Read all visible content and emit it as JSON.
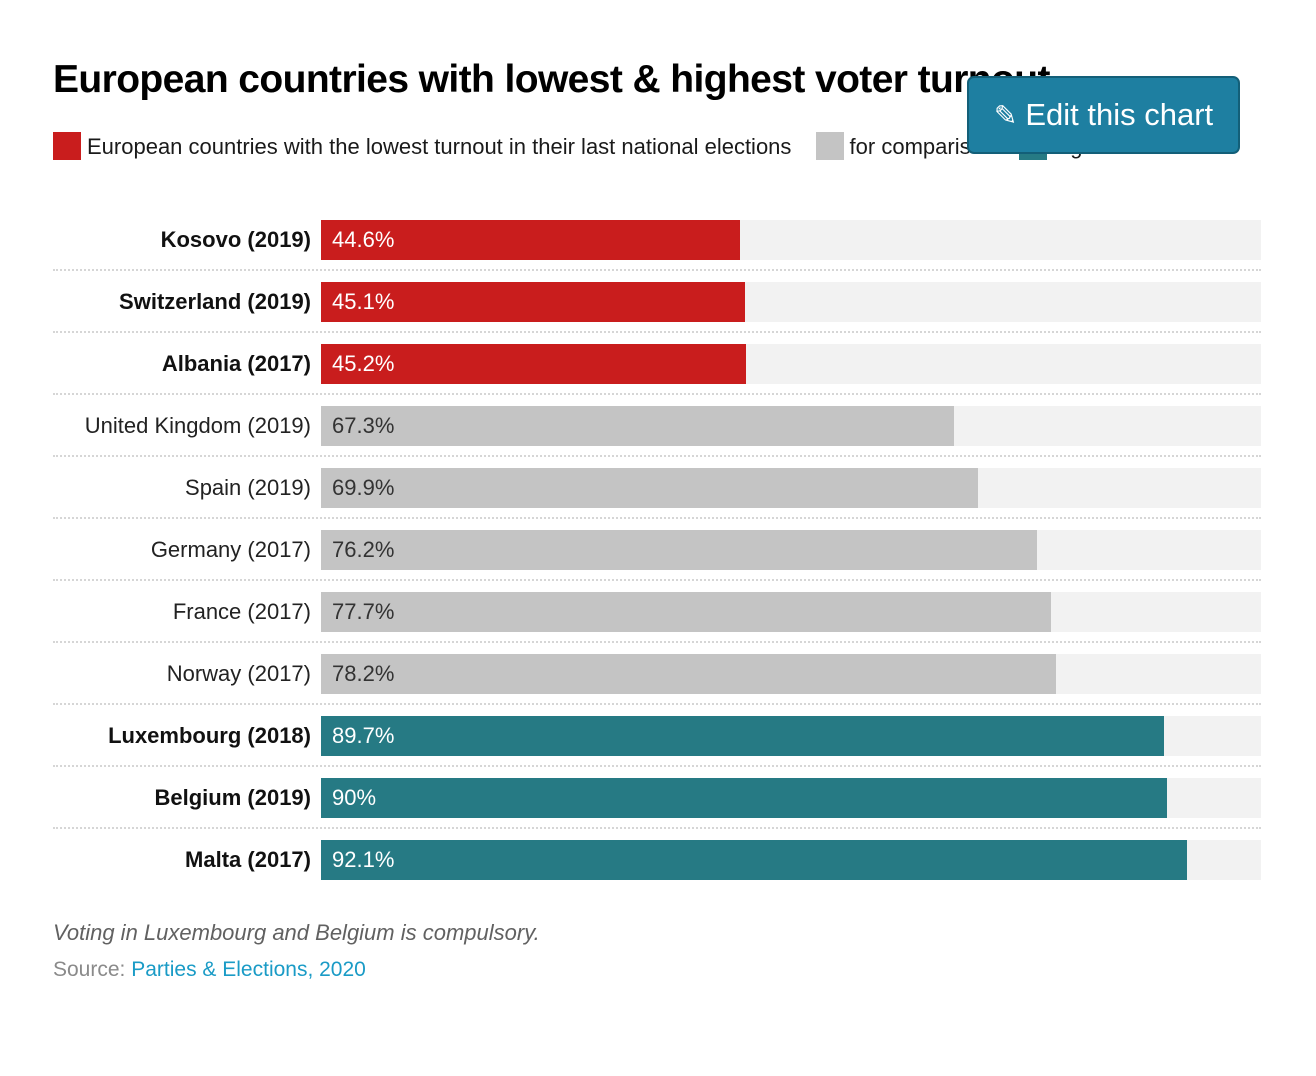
{
  "edit_button": {
    "label": "Edit this chart",
    "icon": "pencil-icon",
    "glyph": "✎"
  },
  "colors": {
    "low": "#c91d1d",
    "compare": "#c4c4c4",
    "high": "#267a84",
    "track": "#f2f2f2",
    "link": "#1a9bc6"
  },
  "chart_data": {
    "type": "bar",
    "orientation": "horizontal",
    "title": "European countries with lowest & highest voter turnout",
    "legend": [
      {
        "key": "low",
        "label": "European countries with the lowest turnout in their last national elections"
      },
      {
        "key": "compare",
        "label": "for comparison"
      },
      {
        "key": "high",
        "label": "highest turnout"
      }
    ],
    "legend_position": "top",
    "xlim": [
      0,
      100
    ],
    "categories": [
      "Kosovo (2019)",
      "Switzerland (2019)",
      "Albania (2017)",
      "United Kingdom (2019)",
      "Spain (2019)",
      "Germany (2017)",
      "France (2017)",
      "Norway (2017)",
      "Luxembourg (2018)",
      "Belgium (2019)",
      "Malta (2017)"
    ],
    "values": [
      44.6,
      45.1,
      45.2,
      67.3,
      69.9,
      76.2,
      77.7,
      78.2,
      89.7,
      90,
      92.1
    ],
    "value_labels": [
      "44.6%",
      "45.1%",
      "45.2%",
      "67.3%",
      "69.9%",
      "76.2%",
      "77.7%",
      "78.2%",
      "89.7%",
      "90%",
      "92.1%"
    ],
    "groups": [
      "low",
      "low",
      "low",
      "compare",
      "compare",
      "compare",
      "compare",
      "compare",
      "high",
      "high",
      "high"
    ],
    "grid": false
  },
  "note": "Voting in Luxembourg and Belgium is compulsory.",
  "source": {
    "prefix": "Source: ",
    "link_text": "Parties & Elections, 2020"
  }
}
